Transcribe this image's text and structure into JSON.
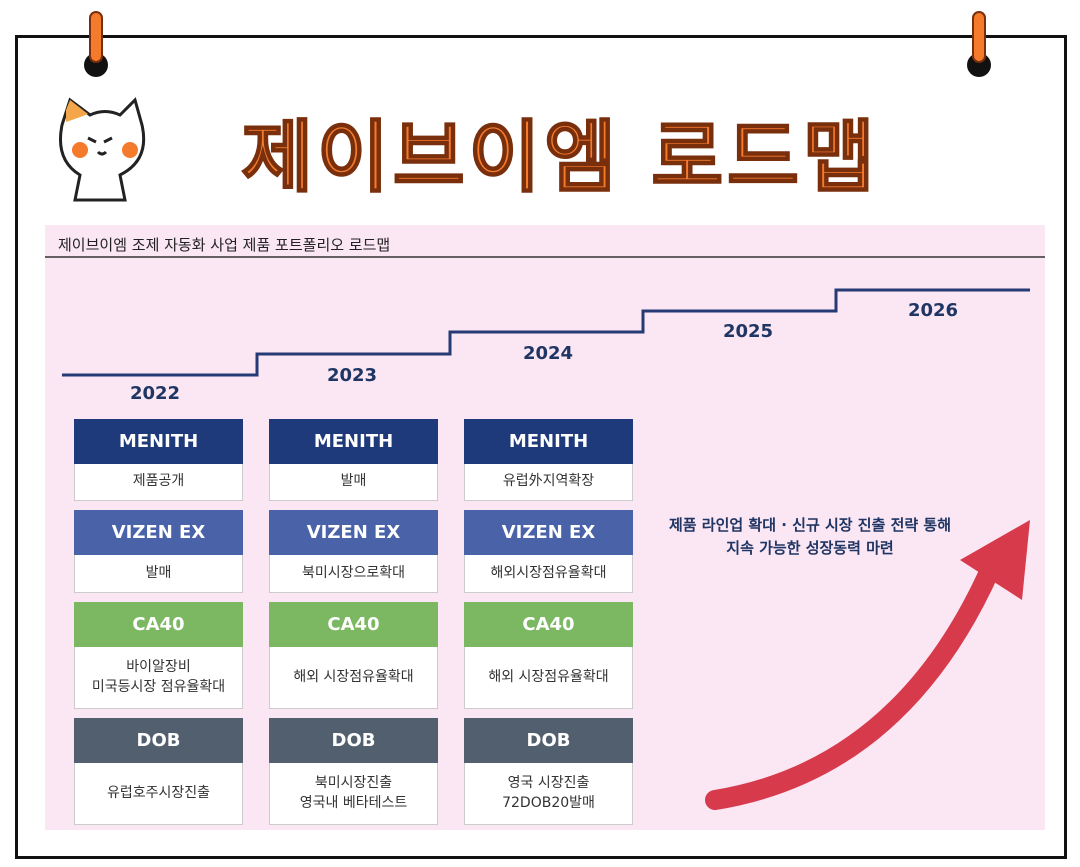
{
  "title": "제이브이엠 로드맵",
  "subtitle": "제이브이엠 조제 자동화 사업 제품 포트폴리오 로드맵",
  "years": [
    "2022",
    "2023",
    "2024",
    "2025",
    "2026"
  ],
  "products": [
    {
      "name": "MENITH",
      "cells": [
        "제품공개",
        "발매",
        "유럽外지역확장"
      ]
    },
    {
      "name": "VIZEN EX",
      "cells": [
        "발매",
        "북미시장으로확대",
        "해외시장점유율확대"
      ]
    },
    {
      "name": "CA40",
      "cells": [
        "바이알장비\n미국등시장 점유율확대",
        "해외 시장점유율확대",
        "해외 시장점유율확대"
      ]
    },
    {
      "name": "DOB",
      "cells": [
        "유럽호주시장진출",
        "북미시장진출\n영국내 베타테스트",
        "영국 시장진출\n72DOB20발매"
      ]
    }
  ],
  "annotation": "제품 라인업 확대 · 신규 시장 진출 전략 통해\n지속 가능한 성장동력 마련"
}
